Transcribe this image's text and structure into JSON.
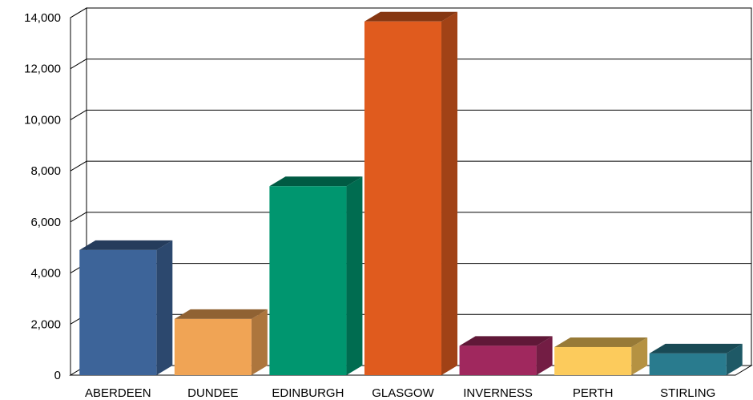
{
  "chart_data": {
    "type": "bar",
    "style": "3d",
    "title": "",
    "xlabel": "",
    "ylabel": "",
    "categories": [
      "ABERDEEN",
      "DUNDEE",
      "EDINBURGH",
      "GLASGOW",
      "INVERNESS",
      "PERTH",
      "STIRLING"
    ],
    "values": [
      4900,
      2200,
      7400,
      13850,
      1150,
      1100,
      850
    ],
    "colors": [
      "#3d6499",
      "#f0a455",
      "#00966f",
      "#e05b1e",
      "#a0285e",
      "#fccb5c",
      "#297b8e"
    ],
    "y_ticks": [
      0,
      2000,
      4000,
      6000,
      8000,
      10000,
      12000,
      14000
    ],
    "y_tick_labels": [
      "0",
      "2,000",
      "4,000",
      "6,000",
      "8,000",
      "10,000",
      "12,000",
      "14,000"
    ],
    "ylim": [
      0,
      14000
    ],
    "grid": true,
    "legend": "none"
  }
}
